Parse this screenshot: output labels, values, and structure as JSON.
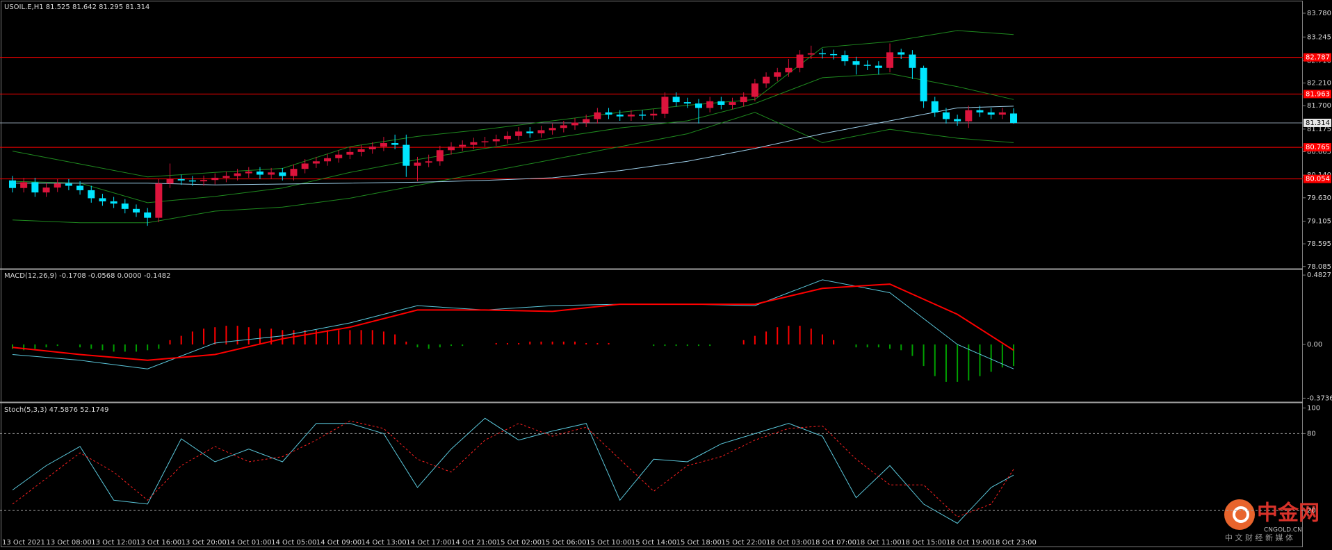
{
  "chart_data": [
    {
      "type": "candlestick",
      "title": "USOIL.E,H1  81.525 81.642 81.295 81.314",
      "up_color": "#dc143c",
      "down_color": "#00e5ff",
      "open": [
        80.02,
        79.85,
        79.98,
        79.75,
        79.86,
        79.95,
        79.9,
        79.8,
        79.62,
        79.55,
        79.5,
        79.38,
        79.3,
        79.18,
        79.95,
        80.05,
        80.02,
        80.0,
        80.03,
        80.08,
        80.12,
        80.18,
        80.22,
        80.15,
        80.2,
        80.12,
        80.28,
        80.4,
        80.45,
        80.52,
        80.6,
        80.66,
        80.72,
        80.78,
        80.86,
        80.82,
        80.35,
        80.42,
        80.45,
        80.7,
        80.78,
        80.82,
        80.88,
        80.9,
        80.95,
        81.02,
        81.12,
        81.08,
        81.15,
        81.2,
        81.26,
        81.32,
        81.4,
        81.55,
        81.5,
        81.46,
        81.5,
        81.48,
        81.52,
        81.9,
        81.78,
        81.75,
        81.65,
        81.8,
        81.72,
        81.78,
        81.9,
        82.2,
        82.35,
        82.45,
        82.55,
        82.85,
        82.88,
        82.86,
        82.84,
        82.7,
        82.62,
        82.6,
        82.55,
        82.9,
        82.85,
        82.55,
        81.8,
        81.55,
        81.4,
        81.35,
        81.6,
        81.55,
        81.5,
        81.525
      ],
      "high": [
        80.12,
        80.08,
        80.08,
        79.96,
        80.05,
        80.05,
        80.0,
        79.9,
        79.72,
        79.65,
        79.6,
        79.48,
        79.4,
        80.05,
        80.4,
        80.15,
        80.12,
        80.13,
        80.18,
        80.22,
        80.28,
        80.32,
        80.32,
        80.3,
        80.3,
        80.38,
        80.5,
        80.55,
        80.62,
        80.7,
        80.76,
        80.82,
        80.88,
        81.0,
        81.05,
        81.05,
        80.55,
        80.6,
        80.8,
        80.88,
        80.92,
        80.98,
        81.0,
        81.05,
        81.12,
        81.22,
        81.22,
        81.25,
        81.3,
        81.36,
        81.42,
        81.5,
        81.65,
        81.65,
        81.6,
        81.6,
        81.6,
        81.62,
        82.0,
        82.0,
        81.88,
        81.85,
        81.9,
        81.9,
        81.88,
        82.0,
        82.3,
        82.45,
        82.55,
        82.75,
        82.95,
        83.05,
        82.98,
        82.96,
        82.94,
        82.8,
        82.72,
        82.7,
        83.1,
        82.98,
        82.95,
        82.6,
        81.9,
        81.65,
        81.5,
        81.7,
        81.7,
        81.65,
        81.65,
        81.642
      ],
      "low": [
        79.75,
        79.75,
        79.65,
        79.65,
        79.76,
        79.8,
        79.7,
        79.52,
        79.45,
        79.4,
        79.28,
        79.2,
        79.0,
        79.08,
        79.85,
        79.92,
        79.9,
        79.9,
        79.93,
        79.98,
        80.02,
        80.08,
        80.05,
        80.05,
        80.02,
        80.02,
        80.18,
        80.3,
        80.35,
        80.42,
        80.5,
        80.56,
        80.62,
        80.68,
        80.72,
        80.1,
        80.0,
        80.32,
        80.35,
        80.6,
        80.68,
        80.72,
        80.78,
        80.8,
        80.85,
        80.92,
        80.98,
        80.98,
        81.05,
        81.1,
        81.16,
        81.22,
        81.3,
        81.4,
        81.36,
        81.36,
        81.38,
        81.38,
        81.42,
        81.68,
        81.65,
        81.3,
        81.55,
        81.62,
        81.62,
        81.68,
        81.8,
        82.1,
        82.25,
        82.35,
        82.45,
        82.75,
        82.76,
        82.74,
        82.6,
        82.4,
        82.5,
        82.4,
        82.45,
        82.75,
        82.3,
        81.65,
        81.45,
        81.3,
        81.25,
        81.2,
        81.45,
        81.4,
        81.4,
        81.295
      ],
      "close": [
        79.85,
        79.98,
        79.75,
        79.86,
        79.95,
        79.9,
        79.8,
        79.62,
        79.55,
        79.5,
        79.38,
        79.3,
        79.18,
        79.95,
        80.05,
        80.02,
        80.0,
        80.03,
        80.08,
        80.12,
        80.18,
        80.22,
        80.15,
        80.2,
        80.12,
        80.28,
        80.4,
        80.45,
        80.52,
        80.6,
        80.66,
        80.72,
        80.78,
        80.86,
        80.82,
        80.35,
        80.42,
        80.45,
        80.7,
        80.78,
        80.82,
        80.88,
        80.9,
        80.95,
        81.02,
        81.12,
        81.08,
        81.15,
        81.2,
        81.26,
        81.32,
        81.4,
        81.55,
        81.5,
        81.46,
        81.5,
        81.48,
        81.52,
        81.9,
        81.78,
        81.75,
        81.65,
        81.8,
        81.72,
        81.78,
        81.9,
        82.2,
        82.35,
        82.45,
        82.55,
        82.85,
        82.88,
        82.86,
        82.84,
        82.7,
        82.62,
        82.6,
        82.55,
        82.9,
        82.85,
        82.55,
        81.8,
        81.55,
        81.4,
        81.35,
        81.6,
        81.55,
        81.5,
        81.55,
        81.314
      ],
      "series": [
        {
          "color": "#1f8a1f",
          "x": [
            0,
            6,
            12,
            18,
            24,
            30,
            36,
            42,
            48,
            54,
            60,
            66,
            72,
            78,
            84,
            89
          ],
          "values": [
            80.68,
            80.39,
            80.1,
            80.2,
            80.29,
            80.78,
            81.01,
            81.17,
            81.36,
            81.55,
            81.71,
            81.84,
            83.01,
            83.14,
            83.39,
            83.3
          ]
        },
        {
          "color": "#1f8a1f",
          "x": [
            0,
            6,
            12,
            18,
            24,
            30,
            36,
            42,
            48,
            54,
            60,
            66,
            72,
            78,
            84,
            89
          ],
          "values": [
            80.0,
            79.96,
            79.52,
            79.66,
            79.85,
            80.2,
            80.49,
            80.74,
            80.97,
            81.2,
            81.36,
            81.75,
            82.33,
            82.42,
            82.13,
            81.84
          ]
        },
        {
          "color": "#1f8a1f",
          "x": [
            0,
            6,
            12,
            18,
            24,
            30,
            36,
            42,
            48,
            54,
            60,
            66,
            72,
            78,
            84,
            89
          ],
          "values": [
            79.13,
            79.07,
            79.07,
            79.33,
            79.42,
            79.62,
            79.91,
            80.2,
            80.49,
            80.78,
            81.07,
            81.55,
            80.87,
            81.17,
            80.97,
            80.87
          ]
        },
        {
          "color": "#9ecfea",
          "x": [
            0,
            6,
            12,
            18,
            24,
            30,
            36,
            42,
            48,
            54,
            60,
            66,
            72,
            78,
            84,
            89
          ],
          "values": [
            79.96,
            79.96,
            79.96,
            79.92,
            79.94,
            79.96,
            79.98,
            80.02,
            80.08,
            80.24,
            80.45,
            80.74,
            81.07,
            81.36,
            81.65,
            81.69
          ]
        }
      ],
      "levels": [
        82.787,
        81.963,
        80.765,
        80.054
      ],
      "level_color": "#ff0000",
      "last_price": 81.314,
      "last_price_color": "#8c9aa8",
      "ylim": [
        78.05,
        84.03
      ],
      "yticks": [
        {
          "value": 83.78,
          "label": "83.780"
        },
        83.245,
        {
          "value": 82.71,
          "label": "82.710"
        },
        {
          "value": 82.21,
          "label": "82.210"
        },
        {
          "value": 81.7,
          "label": "81.700"
        },
        81.175,
        80.665,
        {
          "value": 80.14,
          "label": "80.140"
        },
        {
          "value": 79.63,
          "label": "79.630"
        },
        79.105,
        78.595,
        78.085
      ]
    },
    {
      "type": "macd",
      "title": "MACD(12,26,9) -0.1708 -0.0568 0.0000 -0.1482",
      "histogram": [
        -0.03,
        -0.04,
        -0.03,
        -0.02,
        -0.01,
        0.0,
        -0.02,
        -0.03,
        -0.04,
        -0.05,
        -0.05,
        -0.05,
        -0.04,
        -0.03,
        0.03,
        0.06,
        0.09,
        0.11,
        0.12,
        0.13,
        0.13,
        0.12,
        0.11,
        0.11,
        0.1,
        0.1,
        0.1,
        0.1,
        0.1,
        0.1,
        0.1,
        0.1,
        0.1,
        0.09,
        0.07,
        0.02,
        -0.02,
        -0.03,
        -0.02,
        -0.01,
        -0.01,
        0.0,
        0.0,
        0.01,
        0.01,
        0.01,
        0.02,
        0.02,
        0.02,
        0.02,
        0.02,
        0.01,
        0.01,
        0.01,
        0.0,
        0.0,
        0.0,
        -0.01,
        -0.01,
        -0.01,
        -0.01,
        -0.01,
        -0.01,
        0.0,
        0.0,
        0.03,
        0.06,
        0.09,
        0.12,
        0.13,
        0.13,
        0.11,
        0.07,
        0.03,
        0.0,
        -0.02,
        -0.02,
        -0.02,
        -0.03,
        -0.04,
        -0.08,
        -0.15,
        -0.22,
        -0.26,
        -0.26,
        -0.25,
        -0.22,
        -0.19,
        -0.16,
        -0.15
      ],
      "up_color": "#ff0000",
      "down_color": "#00a000",
      "series": [
        {
          "color": "#5bc8dc",
          "x": [
            0,
            6,
            12,
            18,
            24,
            30,
            36,
            42,
            48,
            54,
            60,
            66,
            72,
            78,
            84,
            89
          ],
          "values": [
            -0.07,
            -0.11,
            -0.17,
            0.01,
            0.06,
            0.15,
            0.27,
            0.24,
            0.27,
            0.28,
            0.28,
            0.27,
            0.45,
            0.36,
            0.0,
            -0.17
          ]
        },
        {
          "color": "#ff0000",
          "x": [
            0,
            6,
            12,
            18,
            24,
            30,
            36,
            42,
            48,
            54,
            60,
            66,
            72,
            78,
            84,
            89
          ],
          "values": [
            -0.02,
            -0.07,
            -0.11,
            -0.07,
            0.04,
            0.12,
            0.24,
            0.24,
            0.23,
            0.28,
            0.28,
            0.28,
            0.39,
            0.42,
            0.21,
            -0.04
          ]
        }
      ],
      "ylim": [
        -0.391,
        0.517
      ],
      "yticks": [
        0.4827,
        {
          "value": 0,
          "label": "0.00"
        },
        -0.3736
      ]
    },
    {
      "type": "stochastic",
      "title": "Stoch(5,3,3) 47.5876 52.1749",
      "series": [
        {
          "color": "#5bc8dc",
          "x": [
            0,
            3,
            6,
            9,
            12,
            15,
            18,
            21,
            24,
            27,
            30,
            33,
            36,
            39,
            42,
            45,
            48,
            51,
            54,
            57,
            60,
            63,
            66,
            69,
            72,
            75,
            78,
            81,
            84,
            87,
            89
          ],
          "values": [
            36,
            55,
            70,
            28,
            25,
            76,
            58,
            68,
            58,
            88,
            88,
            80,
            38,
            68,
            92,
            75,
            82,
            88,
            28,
            60,
            58,
            72,
            80,
            88,
            78,
            30,
            55,
            25,
            10,
            38,
            47.6
          ]
        },
        {
          "color": "#ff2020",
          "dash": true,
          "x": [
            0,
            3,
            6,
            9,
            12,
            15,
            18,
            21,
            24,
            27,
            30,
            33,
            36,
            39,
            42,
            45,
            48,
            51,
            54,
            57,
            60,
            63,
            66,
            69,
            72,
            75,
            78,
            81,
            84,
            87,
            89
          ],
          "values": [
            25,
            45,
            65,
            50,
            28,
            55,
            70,
            58,
            62,
            75,
            90,
            84,
            60,
            50,
            75,
            88,
            78,
            85,
            60,
            35,
            55,
            62,
            75,
            84,
            86,
            60,
            40,
            40,
            15,
            25,
            52.2
          ]
        }
      ],
      "levels": [
        80,
        20
      ],
      "ylim": [
        0,
        103
      ],
      "yticks": [
        100,
        80,
        20
      ],
      "x_tick_labels": [
        "13 Oct 2021",
        "13 Oct 08:00",
        "13 Oct 12:00",
        "13 Oct 16:00",
        "13 Oct 20:00",
        "14 Oct 01:00",
        "14 Oct 05:00",
        "14 Oct 09:00",
        "14 Oct 13:00",
        "14 Oct 17:00",
        "14 Oct 21:00",
        "15 Oct 02:00",
        "15 Oct 06:00",
        "15 Oct 10:00",
        "15 Oct 14:00",
        "15 Oct 18:00",
        "15 Oct 22:00",
        "18 Oct 03:00",
        "18 Oct 07:00",
        "18 Oct 11:00",
        "18 Oct 15:00",
        "18 Oct 19:00",
        "18 Oct 23:00"
      ]
    }
  ],
  "watermark": {
    "name": "中金网",
    "site": "CNGOLD.CN",
    "tagline": "中 文 财 经 新 媒 体"
  }
}
